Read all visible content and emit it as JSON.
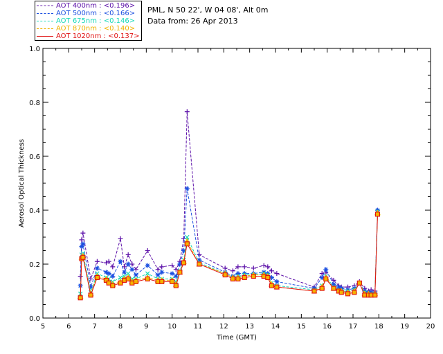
{
  "header": {
    "site_line": "PML, N 50 22', W 04 08', Alt 0m",
    "date_line": "Data from: 26 Apr 2013"
  },
  "colors": {
    "aot400": "#5b0fa8",
    "aot500": "#1b4fe0",
    "aot675": "#19d9b8",
    "aot870": "#f0b400",
    "aot1020": "#e01010"
  },
  "chart_data": {
    "type": "scatter",
    "xlabel": "Time (GMT)",
    "ylabel": "Aerosol Optical Thickness",
    "xlim": [
      5,
      20
    ],
    "ylim": [
      0.0,
      1.0
    ],
    "xticks": [
      "5",
      "6",
      "7",
      "8",
      "9",
      "10",
      "11",
      "12",
      "13",
      "14",
      "15",
      "16",
      "17",
      "18",
      "19",
      "20"
    ],
    "yticks": [
      "0.0",
      "0.2",
      "0.4",
      "0.6",
      "0.8",
      "1.0"
    ],
    "legend_position": "top-left, outside plot",
    "series": [
      {
        "name": "AOT  400nm : <0.196>",
        "marker": "plus",
        "color": "#5b0fa8",
        "x": [
          6.45,
          6.5,
          6.55,
          6.85,
          7.1,
          7.45,
          7.55,
          7.7,
          8.0,
          8.15,
          8.3,
          8.45,
          8.6,
          9.05,
          9.45,
          9.6,
          10.0,
          10.15,
          10.3,
          10.45,
          10.58,
          11.05,
          12.05,
          12.35,
          12.55,
          12.8,
          13.15,
          13.55,
          13.7,
          13.85,
          14.05,
          15.5,
          15.8,
          15.95,
          16.25,
          16.45,
          16.55,
          16.8,
          17.05,
          17.25,
          17.45,
          17.6,
          17.7,
          17.85,
          17.95
        ],
        "y": [
          0.155,
          0.29,
          0.315,
          0.145,
          0.21,
          0.205,
          0.21,
          0.19,
          0.295,
          0.19,
          0.235,
          0.2,
          0.18,
          0.25,
          0.18,
          0.19,
          0.195,
          0.18,
          0.21,
          0.295,
          0.765,
          0.235,
          0.185,
          0.175,
          0.19,
          0.19,
          0.185,
          0.195,
          0.19,
          0.175,
          0.165,
          0.115,
          0.165,
          0.17,
          0.14,
          0.12,
          0.115,
          0.115,
          0.12,
          0.135,
          0.11,
          0.1,
          0.105,
          0.1,
          0.4
        ]
      },
      {
        "name": "AOT  500nm : <0.166>",
        "marker": "star",
        "color": "#1b4fe0",
        "x": [
          6.45,
          6.5,
          6.55,
          6.85,
          7.1,
          7.45,
          7.55,
          7.7,
          8.0,
          8.15,
          8.3,
          8.45,
          8.6,
          9.05,
          9.45,
          9.6,
          10.0,
          10.15,
          10.3,
          10.45,
          10.58,
          11.05,
          12.05,
          12.35,
          12.55,
          12.8,
          13.15,
          13.55,
          13.7,
          13.85,
          14.05,
          15.5,
          15.8,
          15.95,
          16.25,
          16.45,
          16.55,
          16.8,
          17.05,
          17.25,
          17.45,
          17.6,
          17.7,
          17.85,
          17.95
        ],
        "y": [
          0.12,
          0.265,
          0.275,
          0.115,
          0.185,
          0.17,
          0.165,
          0.155,
          0.21,
          0.17,
          0.2,
          0.18,
          0.16,
          0.195,
          0.16,
          0.17,
          0.165,
          0.155,
          0.2,
          0.25,
          0.48,
          0.215,
          0.17,
          0.155,
          0.165,
          0.165,
          0.165,
          0.17,
          0.165,
          0.15,
          0.135,
          0.11,
          0.15,
          0.18,
          0.125,
          0.115,
          0.11,
          0.105,
          0.11,
          0.13,
          0.1,
          0.095,
          0.095,
          0.09,
          0.4
        ]
      },
      {
        "name": "AOT  675nm : <0.146>",
        "marker": "x",
        "color": "#19d9b8",
        "x": [
          6.45,
          6.5,
          6.55,
          6.85,
          7.1,
          7.45,
          7.55,
          7.7,
          8.0,
          8.15,
          8.3,
          8.45,
          8.6,
          9.05,
          9.45,
          9.6,
          10.0,
          10.15,
          10.3,
          10.45,
          10.58,
          11.05,
          12.05,
          12.35,
          12.55,
          12.8,
          13.15,
          13.55,
          13.7,
          13.85,
          14.05,
          15.5,
          15.8,
          15.95,
          16.25,
          16.45,
          16.55,
          16.8,
          17.05,
          17.25,
          17.45,
          17.6,
          17.7,
          17.85,
          17.95
        ],
        "y": [
          0.09,
          0.235,
          0.24,
          0.095,
          0.165,
          0.15,
          0.145,
          0.135,
          0.15,
          0.155,
          0.165,
          0.145,
          0.145,
          0.165,
          0.145,
          0.145,
          0.145,
          0.135,
          0.175,
          0.215,
          0.3,
          0.205,
          0.165,
          0.15,
          0.155,
          0.16,
          0.16,
          0.165,
          0.16,
          0.13,
          0.12,
          0.105,
          0.12,
          0.155,
          0.115,
          0.105,
          0.1,
          0.1,
          0.105,
          0.13,
          0.095,
          0.09,
          0.09,
          0.09,
          0.395
        ]
      },
      {
        "name": "AOT  870nm : <0.140>",
        "marker": "triangle",
        "color": "#f0b400",
        "x": [
          6.45,
          6.5,
          6.55,
          6.85,
          7.1,
          7.45,
          7.55,
          7.7,
          8.0,
          8.15,
          8.3,
          8.45,
          8.6,
          9.05,
          9.45,
          9.6,
          10.0,
          10.15,
          10.3,
          10.45,
          10.58,
          11.05,
          12.05,
          12.35,
          12.55,
          12.8,
          13.15,
          13.55,
          13.7,
          13.85,
          14.05,
          15.5,
          15.8,
          15.95,
          16.25,
          16.45,
          16.55,
          16.8,
          17.05,
          17.25,
          17.45,
          17.6,
          17.7,
          17.85,
          17.95
        ],
        "y": [
          0.08,
          0.225,
          0.23,
          0.09,
          0.155,
          0.145,
          0.135,
          0.125,
          0.135,
          0.145,
          0.15,
          0.135,
          0.14,
          0.15,
          0.14,
          0.14,
          0.14,
          0.125,
          0.17,
          0.21,
          0.285,
          0.2,
          0.165,
          0.15,
          0.15,
          0.155,
          0.16,
          0.16,
          0.155,
          0.125,
          0.115,
          0.1,
          0.115,
          0.15,
          0.11,
          0.1,
          0.1,
          0.095,
          0.1,
          0.13,
          0.09,
          0.09,
          0.085,
          0.09,
          0.39
        ]
      },
      {
        "name": "AOT 1020nm : <0.137>",
        "marker": "square",
        "color": "#e01010",
        "x": [
          6.45,
          6.5,
          6.55,
          6.85,
          7.1,
          7.45,
          7.55,
          7.7,
          8.0,
          8.15,
          8.3,
          8.45,
          8.6,
          9.05,
          9.45,
          9.6,
          10.0,
          10.15,
          10.3,
          10.45,
          10.58,
          11.05,
          12.05,
          12.35,
          12.55,
          12.8,
          13.15,
          13.55,
          13.7,
          13.85,
          14.05,
          15.5,
          15.8,
          15.95,
          16.25,
          16.45,
          16.55,
          16.8,
          17.05,
          17.25,
          17.45,
          17.6,
          17.7,
          17.85,
          17.95
        ],
        "y": [
          0.075,
          0.22,
          0.225,
          0.085,
          0.15,
          0.14,
          0.13,
          0.12,
          0.13,
          0.14,
          0.145,
          0.13,
          0.135,
          0.145,
          0.135,
          0.135,
          0.135,
          0.12,
          0.17,
          0.205,
          0.275,
          0.2,
          0.16,
          0.145,
          0.145,
          0.15,
          0.155,
          0.155,
          0.15,
          0.12,
          0.115,
          0.1,
          0.11,
          0.145,
          0.11,
          0.1,
          0.095,
          0.09,
          0.095,
          0.13,
          0.085,
          0.085,
          0.085,
          0.085,
          0.385
        ]
      }
    ]
  }
}
